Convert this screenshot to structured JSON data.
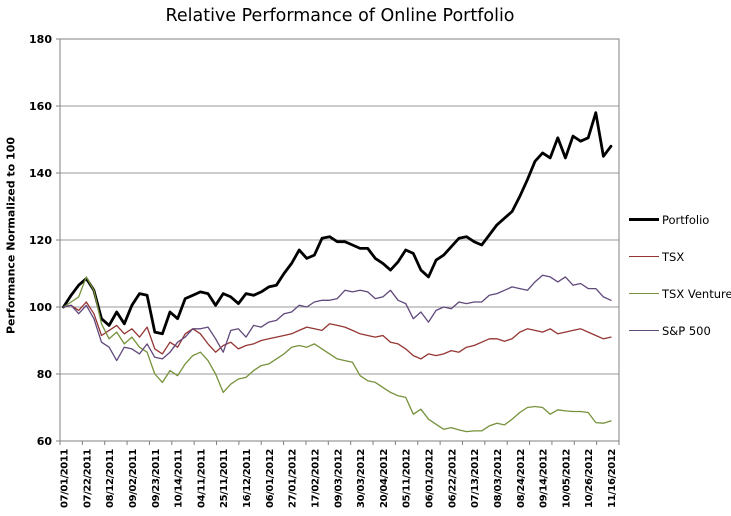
{
  "chart_data": {
    "type": "line",
    "title": "Relative Performance of Online Portfolio",
    "ylabel": "Performance Normalized to 100",
    "xlabel": "",
    "ylim": [
      60,
      180
    ],
    "y_ticks": [
      180,
      160,
      140,
      120,
      100,
      80,
      60
    ],
    "grid": "horizontal",
    "legend_position": "right",
    "x_tick_labels": [
      "07/01/2011",
      "07/22/2011",
      "08/12/2011",
      "09/02/2011",
      "09/23/2011",
      "10/14/2011",
      "04/11/2011",
      "25/11/2011",
      "16/12/2011",
      "06/01/2012",
      "27/01/2012",
      "17/02/2012",
      "09/03/2012",
      "30/03/2012",
      "20/04/2012",
      "05/11/2012",
      "06/01/2012",
      "06/22/2012",
      "07/13/2012",
      "08/03/2012",
      "08/24/2012",
      "09/14/2012",
      "10/05/2012",
      "10/26/2012",
      "11/16/2012"
    ],
    "x_points_per_tick": 3,
    "series": [
      {
        "name": "Portfolio",
        "color": "#000000",
        "line_width": 2.8,
        "values": [
          100,
          103.5,
          106.5,
          108.5,
          105,
          96.5,
          94.5,
          98.5,
          95,
          100.5,
          104,
          103.5,
          92.5,
          92,
          98.5,
          96.5,
          102.5,
          103.5,
          104.5,
          104,
          100.5,
          104,
          103,
          101,
          104,
          103.5,
          104.5,
          106,
          106.5,
          110,
          113,
          117,
          114.5,
          115.5,
          120.5,
          121,
          119.5,
          119.5,
          118.5,
          117.5,
          117.5,
          114.5,
          113,
          111,
          113.5,
          117,
          116,
          111,
          109,
          114,
          115.5,
          118,
          120.5,
          121,
          119.5,
          118.5,
          121.5,
          124.5,
          126.5,
          128.5,
          133,
          138,
          143.5,
          146,
          144.5,
          150.5,
          144.5,
          151,
          149.5,
          150.5,
          158,
          145,
          148
        ]
      },
      {
        "name": "TSX",
        "color": "#943634",
        "line_width": 1.3,
        "values": [
          100,
          100.5,
          99,
          101.5,
          98,
          91.5,
          93,
          94.5,
          92,
          93.5,
          91,
          94,
          87.5,
          86,
          89.5,
          88,
          92,
          93.5,
          92,
          89,
          86.5,
          88.5,
          89.5,
          87.5,
          88.5,
          89,
          90,
          90.5,
          91,
          91.5,
          92,
          93,
          94,
          93.5,
          93,
          95,
          94.5,
          94,
          93,
          92,
          91.5,
          91,
          91.5,
          89.5,
          89,
          87.5,
          85.5,
          84.5,
          86,
          85.5,
          86,
          87,
          86.5,
          88,
          88.5,
          89.5,
          90.5,
          90.5,
          89.8,
          90.5,
          92.5,
          93.5,
          93,
          92.5,
          93.5,
          92,
          92.5,
          93,
          93.5,
          92.5,
          91.5,
          90.5,
          91
        ]
      },
      {
        "name": "TSX Venture",
        "color": "#76923C",
        "line_width": 1.3,
        "values": [
          100,
          101.5,
          103,
          109,
          105,
          95,
          90.5,
          92.5,
          89,
          91,
          88,
          86.5,
          80,
          77.5,
          81,
          79.5,
          83,
          85.5,
          86.5,
          84,
          80,
          74.5,
          77,
          78.5,
          79,
          81,
          82.5,
          83,
          84.5,
          86,
          88,
          88.5,
          88,
          89,
          87.5,
          86,
          84.5,
          84,
          83.5,
          79.5,
          78,
          77.5,
          76,
          74.5,
          73.5,
          73,
          68,
          69.5,
          66.5,
          65,
          63.5,
          64,
          63.3,
          62.8,
          63,
          63,
          64.5,
          65.3,
          64.8,
          66.5,
          68.5,
          70,
          70.3,
          70,
          68,
          69.3,
          69,
          68.8,
          68.8,
          68.5,
          65.5,
          65.3,
          66
        ]
      },
      {
        "name": "S&P 500",
        "color": "#60497B",
        "line_width": 1.3,
        "values": [
          100,
          100.5,
          98,
          100.5,
          96.5,
          89.5,
          88,
          84,
          88,
          87.5,
          86,
          89,
          85,
          84.5,
          86.5,
          89.5,
          91,
          93.5,
          93.5,
          94,
          90.5,
          86.5,
          93,
          93.5,
          91,
          94.5,
          94,
          95.5,
          96,
          98,
          98.5,
          100.5,
          100,
          101.5,
          102,
          102,
          102.5,
          105,
          104.5,
          105,
          104.5,
          102.5,
          103,
          105,
          102,
          101,
          96.5,
          98.5,
          95.5,
          99,
          100,
          99.5,
          101.5,
          101,
          101.5,
          101.5,
          103.5,
          104,
          105,
          106,
          105.5,
          105,
          107.5,
          109.5,
          109,
          107.5,
          109,
          106.5,
          107,
          105.5,
          105.5,
          103,
          102
        ]
      }
    ],
    "colors": {
      "plot_border": "#808080",
      "gridline": "#9a9a9a",
      "background": "#ffffff"
    }
  }
}
